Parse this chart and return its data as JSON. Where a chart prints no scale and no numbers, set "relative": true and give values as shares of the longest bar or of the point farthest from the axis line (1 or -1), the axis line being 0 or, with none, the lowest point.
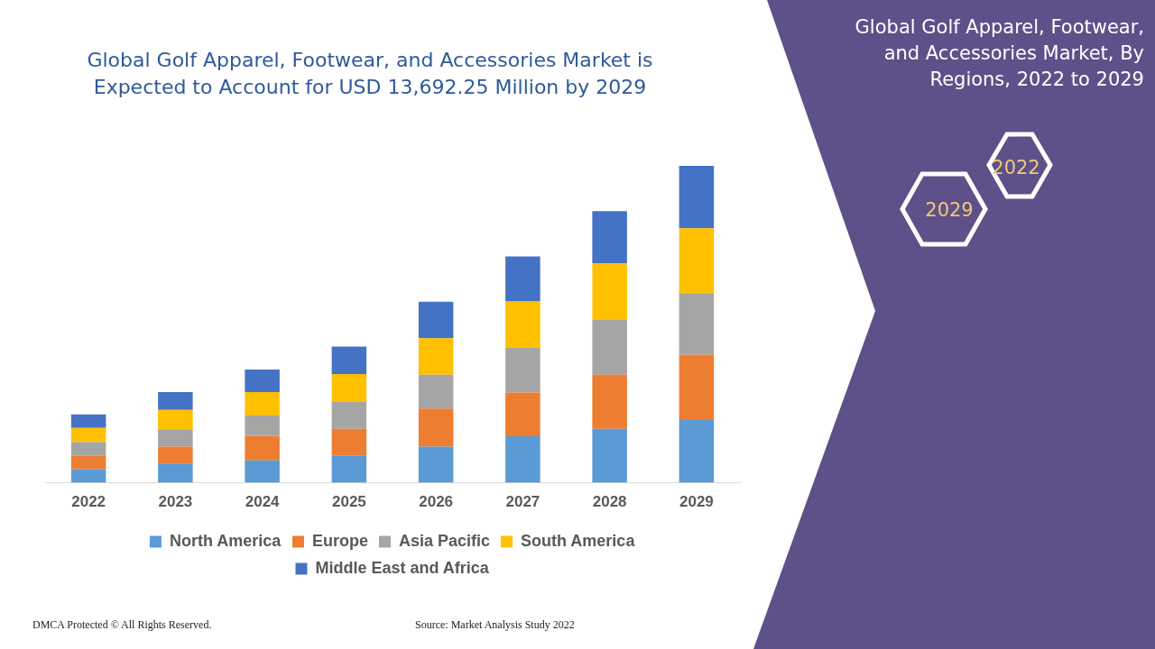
{
  "chart_data": {
    "type": "bar",
    "stacked": true,
    "relative": true,
    "legend": "bottom",
    "grid": false,
    "title": "Global Golf Apparel, Footwear, and Accessories Market is Expected to Account for USD 13,692.25 Million by 2029",
    "subtitle": "Global Golf Apparel, Footwear, and Accessories Market, By Regions, 2022 to 2029",
    "categories": [
      "2022",
      "2023",
      "2024",
      "2025",
      "2026",
      "2027",
      "2028",
      "2029"
    ],
    "series": [
      {
        "name": "North America",
        "color": "#5b9bd5",
        "values": [
          0.043,
          0.061,
          0.071,
          0.085,
          0.114,
          0.147,
          0.17,
          0.198
        ]
      },
      {
        "name": "Europe",
        "color": "#ed7d31",
        "values": [
          0.042,
          0.053,
          0.077,
          0.085,
          0.12,
          0.138,
          0.171,
          0.206
        ]
      },
      {
        "name": "Asia Pacific",
        "color": "#a5a5a5",
        "values": [
          0.043,
          0.055,
          0.064,
          0.085,
          0.107,
          0.142,
          0.173,
          0.194
        ]
      },
      {
        "name": "South America",
        "color": "#ffc000",
        "values": [
          0.045,
          0.061,
          0.074,
          0.088,
          0.115,
          0.145,
          0.178,
          0.205
        ]
      },
      {
        "name": "Middle East and Africa",
        "color": "#4472c4",
        "values": [
          0.043,
          0.056,
          0.071,
          0.087,
          0.115,
          0.142,
          0.165,
          0.197
        ]
      }
    ],
    "annotations": [
      "2022",
      "2029",
      "DMCA Protected © All Rights Reserved.",
      "Source: Market Analysis Study 2022"
    ]
  }
}
